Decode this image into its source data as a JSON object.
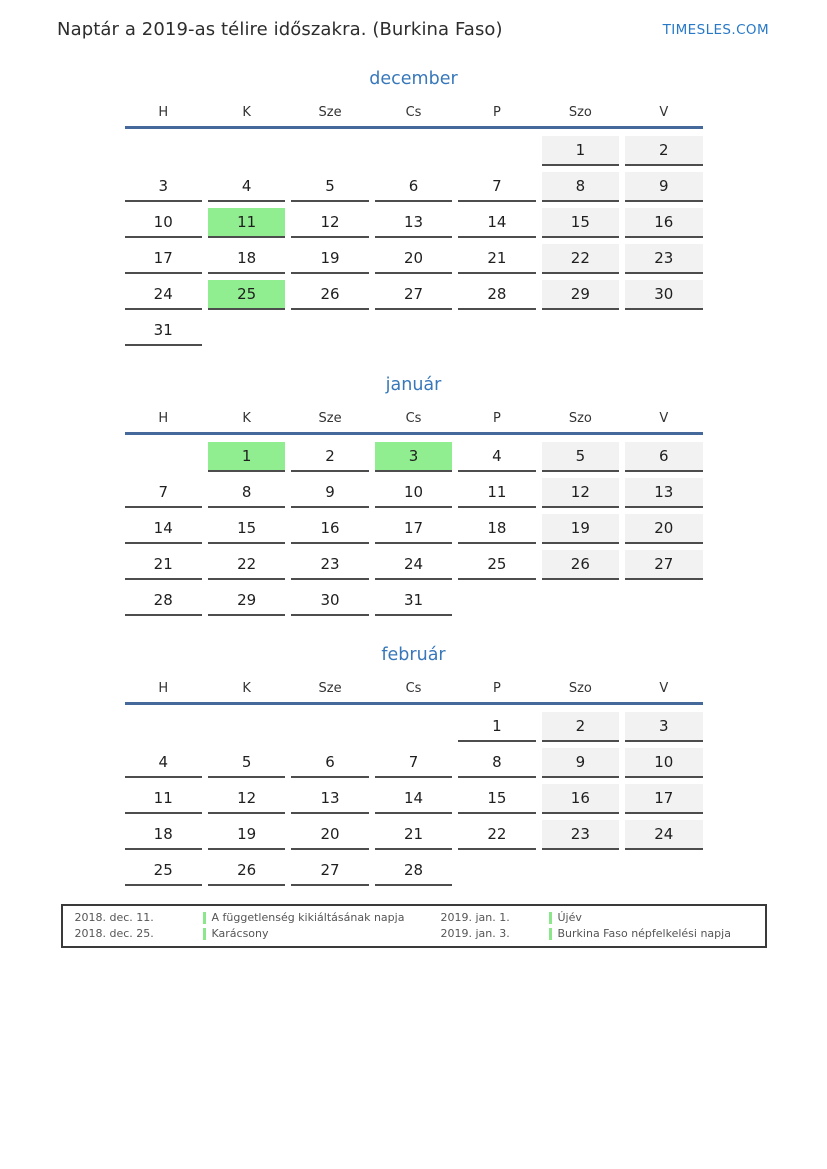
{
  "header": {
    "title": "Naptár a 2019-as télire időszakra. (Burkina Faso)",
    "brand": "TIMESLES.COM"
  },
  "weekday_headers": [
    "H",
    "K",
    "Sze",
    "Cs",
    "P",
    "Szo",
    "V"
  ],
  "months": [
    {
      "name": "december",
      "holidays": [
        11,
        25
      ],
      "weeks": [
        [
          null,
          null,
          null,
          null,
          null,
          1,
          2
        ],
        [
          3,
          4,
          5,
          6,
          7,
          8,
          9
        ],
        [
          10,
          11,
          12,
          13,
          14,
          15,
          16
        ],
        [
          17,
          18,
          19,
          20,
          21,
          22,
          23
        ],
        [
          24,
          25,
          26,
          27,
          28,
          29,
          30
        ],
        [
          31,
          null,
          null,
          null,
          null,
          null,
          null
        ]
      ]
    },
    {
      "name": "január",
      "holidays": [
        1,
        3
      ],
      "weeks": [
        [
          null,
          1,
          2,
          3,
          4,
          5,
          6
        ],
        [
          7,
          8,
          9,
          10,
          11,
          12,
          13
        ],
        [
          14,
          15,
          16,
          17,
          18,
          19,
          20
        ],
        [
          21,
          22,
          23,
          24,
          25,
          26,
          27
        ],
        [
          28,
          29,
          30,
          31,
          null,
          null,
          null
        ]
      ]
    },
    {
      "name": "február",
      "holidays": [],
      "weeks": [
        [
          null,
          null,
          null,
          null,
          1,
          2,
          3
        ],
        [
          4,
          5,
          6,
          7,
          8,
          9,
          10
        ],
        [
          11,
          12,
          13,
          14,
          15,
          16,
          17
        ],
        [
          18,
          19,
          20,
          21,
          22,
          23,
          24
        ],
        [
          25,
          26,
          27,
          28,
          null,
          null,
          null
        ]
      ]
    }
  ],
  "legend": {
    "entries": [
      {
        "date": "2018. dec. 11.",
        "label": "A függetlenség kikiáltásának napja"
      },
      {
        "date": "2018. dec. 25.",
        "label": "Karácsony"
      },
      {
        "date": "2019. jan. 1.",
        "label": "Újév"
      },
      {
        "date": "2019. jan. 3.",
        "label": "Burkina Faso népfelkelési napja"
      }
    ]
  },
  "colors": {
    "accent_blue": "#3878ba",
    "brand_blue": "#2779c7",
    "header_line_blue": "#46699b",
    "holiday_green": "#90ee90",
    "legend_green": "#8ce68c",
    "weekend_gray": "#f2f2f2",
    "cell_border": "#4d4d4d"
  }
}
